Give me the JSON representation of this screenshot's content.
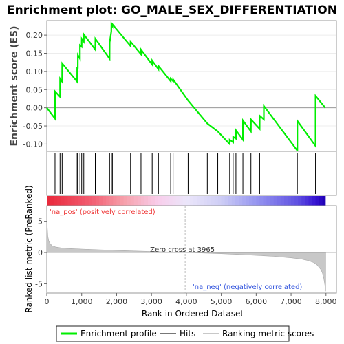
{
  "chart_data": {
    "title": "Enrichment plot: GO_MALE_SEX_DIFFERENTIATION",
    "type": "line",
    "top_panel": {
      "ylabel": "Enrichment score (ES)",
      "yticks": [
        "0.20",
        "0.15",
        "0.10",
        "0.05",
        "0.00",
        "-0.05",
        "-0.10"
      ],
      "ytick_values": [
        0.2,
        0.15,
        0.1,
        0.05,
        0.0,
        -0.05,
        -0.1
      ],
      "ylim": [
        -0.12,
        0.24
      ],
      "line_color": "#00ee00",
      "series": {
        "name": "Enrichment profile",
        "x": [
          0,
          236,
          237,
          380,
          381,
          440,
          441,
          870,
          871,
          890,
          891,
          950,
          951,
          1000,
          1001,
          1060,
          1061,
          1390,
          1391,
          1800,
          1801,
          1850,
          1851,
          1880,
          1881,
          2400,
          2401,
          2700,
          2701,
          3020,
          3021,
          3200,
          3201,
          3550,
          3551,
          3620,
          3621,
          4050,
          4600,
          4900,
          5240,
          5241,
          5340,
          5341,
          5420,
          5421,
          5620,
          5621,
          5850,
          5851,
          6100,
          6101,
          6220,
          6221,
          7180,
          7181,
          7700,
          7701,
          7980
        ],
        "y": [
          0.0,
          -0.03,
          0.045,
          0.03,
          0.08,
          0.072,
          0.122,
          0.072,
          0.11,
          0.11,
          0.145,
          0.135,
          0.172,
          0.168,
          0.19,
          0.182,
          0.202,
          0.16,
          0.19,
          0.135,
          0.18,
          0.21,
          0.23,
          0.225,
          0.23,
          0.17,
          0.182,
          0.147,
          0.16,
          0.119,
          0.13,
          0.106,
          0.115,
          0.073,
          0.08,
          0.073,
          0.078,
          0.02,
          -0.043,
          -0.065,
          -0.1,
          -0.088,
          -0.095,
          -0.08,
          -0.085,
          -0.062,
          -0.088,
          -0.035,
          -0.065,
          -0.032,
          -0.058,
          -0.022,
          -0.032,
          0.005,
          -0.118,
          -0.036,
          -0.105,
          0.033,
          0.0
        ]
      }
    },
    "ranked_panel": {
      "ylabel": "Ranked list metric (PreRanked)",
      "yticks": [
        "5",
        "0",
        "-5"
      ],
      "ytick_values": [
        5,
        0,
        -5
      ],
      "ylim": [
        -6.5,
        7.5
      ],
      "zero_cross_label": "Zero cross at 3965",
      "zero_cross": 3965,
      "pos_label": "'na_pos' (positively correlated)",
      "neg_label": "'na_neg' (negatively correlated)",
      "series": {
        "name": "Ranking metric scores",
        "x": [
          0,
          10,
          30,
          60,
          100,
          150,
          250,
          400,
          600,
          1000,
          1500,
          2000,
          2500,
          3000,
          3500,
          3965,
          4500,
          5000,
          5500,
          6000,
          6500,
          7000,
          7300,
          7500,
          7650,
          7750,
          7850,
          7900,
          7940,
          7970,
          7990
        ],
        "y": [
          6.8,
          4.4,
          2.6,
          1.8,
          1.4,
          1.1,
          0.9,
          0.75,
          0.65,
          0.55,
          0.45,
          0.35,
          0.25,
          0.17,
          0.08,
          0.0,
          -0.08,
          -0.18,
          -0.3,
          -0.45,
          -0.6,
          -0.85,
          -1.05,
          -1.3,
          -1.6,
          -2.0,
          -2.7,
          -3.3,
          -4.2,
          -5.3,
          -6.2
        ]
      }
    },
    "hits": [
      236,
      380,
      440,
      870,
      890,
      950,
      1000,
      1060,
      1390,
      1800,
      1850,
      1880,
      2400,
      2700,
      3020,
      3200,
      3550,
      3620,
      4050,
      4600,
      4900,
      5240,
      5340,
      5420,
      5620,
      5850,
      6100,
      6220,
      7180,
      7700
    ],
    "xaxis": {
      "label": "Rank in Ordered Dataset",
      "ticks": [
        "0",
        "1,000",
        "2,000",
        "3,000",
        "4,000",
        "5,000",
        "6,000",
        "7,000",
        "8,000"
      ],
      "tick_values": [
        0,
        1000,
        2000,
        3000,
        4000,
        5000,
        6000,
        7000,
        8000
      ],
      "xlim": [
        0,
        8300
      ]
    },
    "legend": {
      "placement": "bottom",
      "items": [
        {
          "label": "Enrichment profile",
          "color": "#00ee00"
        },
        {
          "label": "Hits",
          "color": "#777777"
        },
        {
          "label": "Ranking metric scores",
          "color": "#c8c8c8"
        }
      ]
    }
  }
}
